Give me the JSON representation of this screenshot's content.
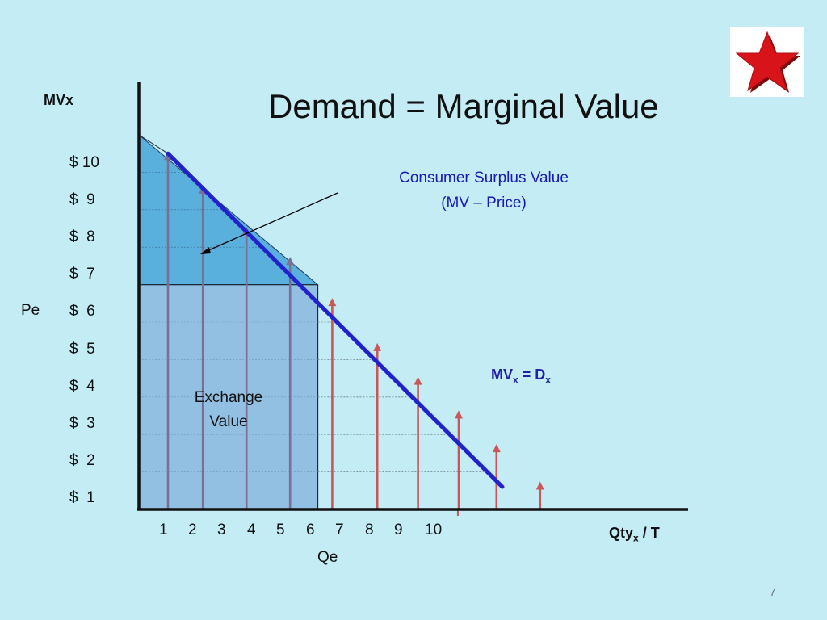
{
  "slide": {
    "title": "Demand = Marginal Value",
    "page_number": "7"
  },
  "chart_data": {
    "type": "line",
    "title": "Demand = Marginal Value",
    "ylabel": "MVx",
    "xlabel_main": "Qty",
    "xlabel_sub": "x",
    "xlabel_suffix": " / T",
    "x_ticks": [
      "1",
      "2",
      "3",
      "4",
      "5",
      "6",
      "7",
      "8",
      "9",
      "10"
    ],
    "y_ticks": [
      "$ 10",
      "$  9",
      "$  8",
      "$  7",
      "$  6",
      "$  5",
      "$  4",
      "$  3",
      "$  2",
      "$  1"
    ],
    "xlim": [
      0,
      12.5
    ],
    "ylim": [
      0,
      10
    ],
    "series": [
      {
        "label_main": "MV",
        "label_sub": "x",
        "label_eq": " = D",
        "label_sub2": "x",
        "x": [
          1,
          12.5
        ],
        "y": [
          9.5,
          0.6
        ]
      }
    ],
    "demand_anchor_x": 0,
    "demand_anchor_y": 10,
    "price_level": 6,
    "equilibrium_qty": 6.15,
    "arrows_x": [
      1,
      2.2,
      3.7,
      5.2,
      6.65,
      8.2,
      9.6,
      11,
      12.3,
      13.8
    ],
    "arrows_y": [
      9.5,
      8.6,
      7.5,
      6.7,
      5.6,
      4.4,
      3.5,
      2.6,
      1.7,
      0.7
    ],
    "consumer_surplus_color": "#5ab0dc",
    "exchange_value_color": "#8cbbe0",
    "demand_line_color": "#2222cc",
    "arrow_in_color": "#7b6f93",
    "arrow_out_color": "#c9575a",
    "annotations": {
      "pe": "Pe",
      "qe": "Qe",
      "consumer_surplus_line1": "Consumer Surplus Value",
      "consumer_surplus_line2": "(MV – Price)",
      "exchange_line1": "Exchange",
      "exchange_line2": "Value"
    }
  },
  "decor": {
    "star_icon": "red-star-icon",
    "star_color": "#d8131a"
  }
}
